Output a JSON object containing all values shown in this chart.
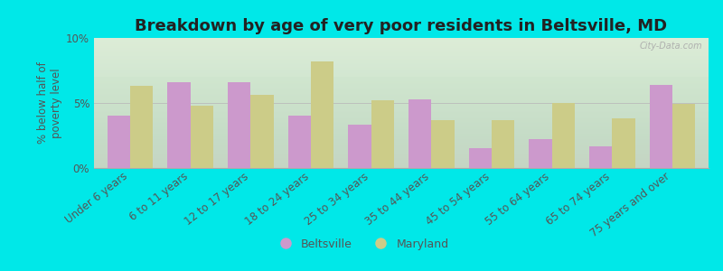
{
  "title": "Breakdown by age of very poor residents in Beltsville, MD",
  "categories": [
    "Under 6 years",
    "6 to 11 years",
    "12 to 17 years",
    "18 to 24 years",
    "25 to 34 years",
    "35 to 44 years",
    "45 to 54 years",
    "55 to 64 years",
    "65 to 74 years",
    "75 years and over"
  ],
  "beltsville": [
    4.0,
    6.6,
    6.6,
    4.0,
    3.3,
    5.3,
    1.5,
    2.2,
    1.7,
    6.4
  ],
  "maryland": [
    6.3,
    4.8,
    5.6,
    8.2,
    5.2,
    3.7,
    3.7,
    5.0,
    3.8,
    4.9
  ],
  "beltsville_color": "#cc99cc",
  "maryland_color": "#cccc88",
  "background_color": "#00e8e8",
  "ylabel": "% below half of\npoverty level",
  "ylim": [
    0,
    10
  ],
  "yticks": [
    0,
    5,
    10
  ],
  "ytick_labels": [
    "0%",
    "5%",
    "10%"
  ],
  "title_fontsize": 13,
  "tick_fontsize": 8.5,
  "ylabel_fontsize": 8.5,
  "legend_labels": [
    "Beltsville",
    "Maryland"
  ],
  "watermark": "City-Data.com",
  "bar_width": 0.38,
  "tick_color": "#555555",
  "label_color": "#555555"
}
